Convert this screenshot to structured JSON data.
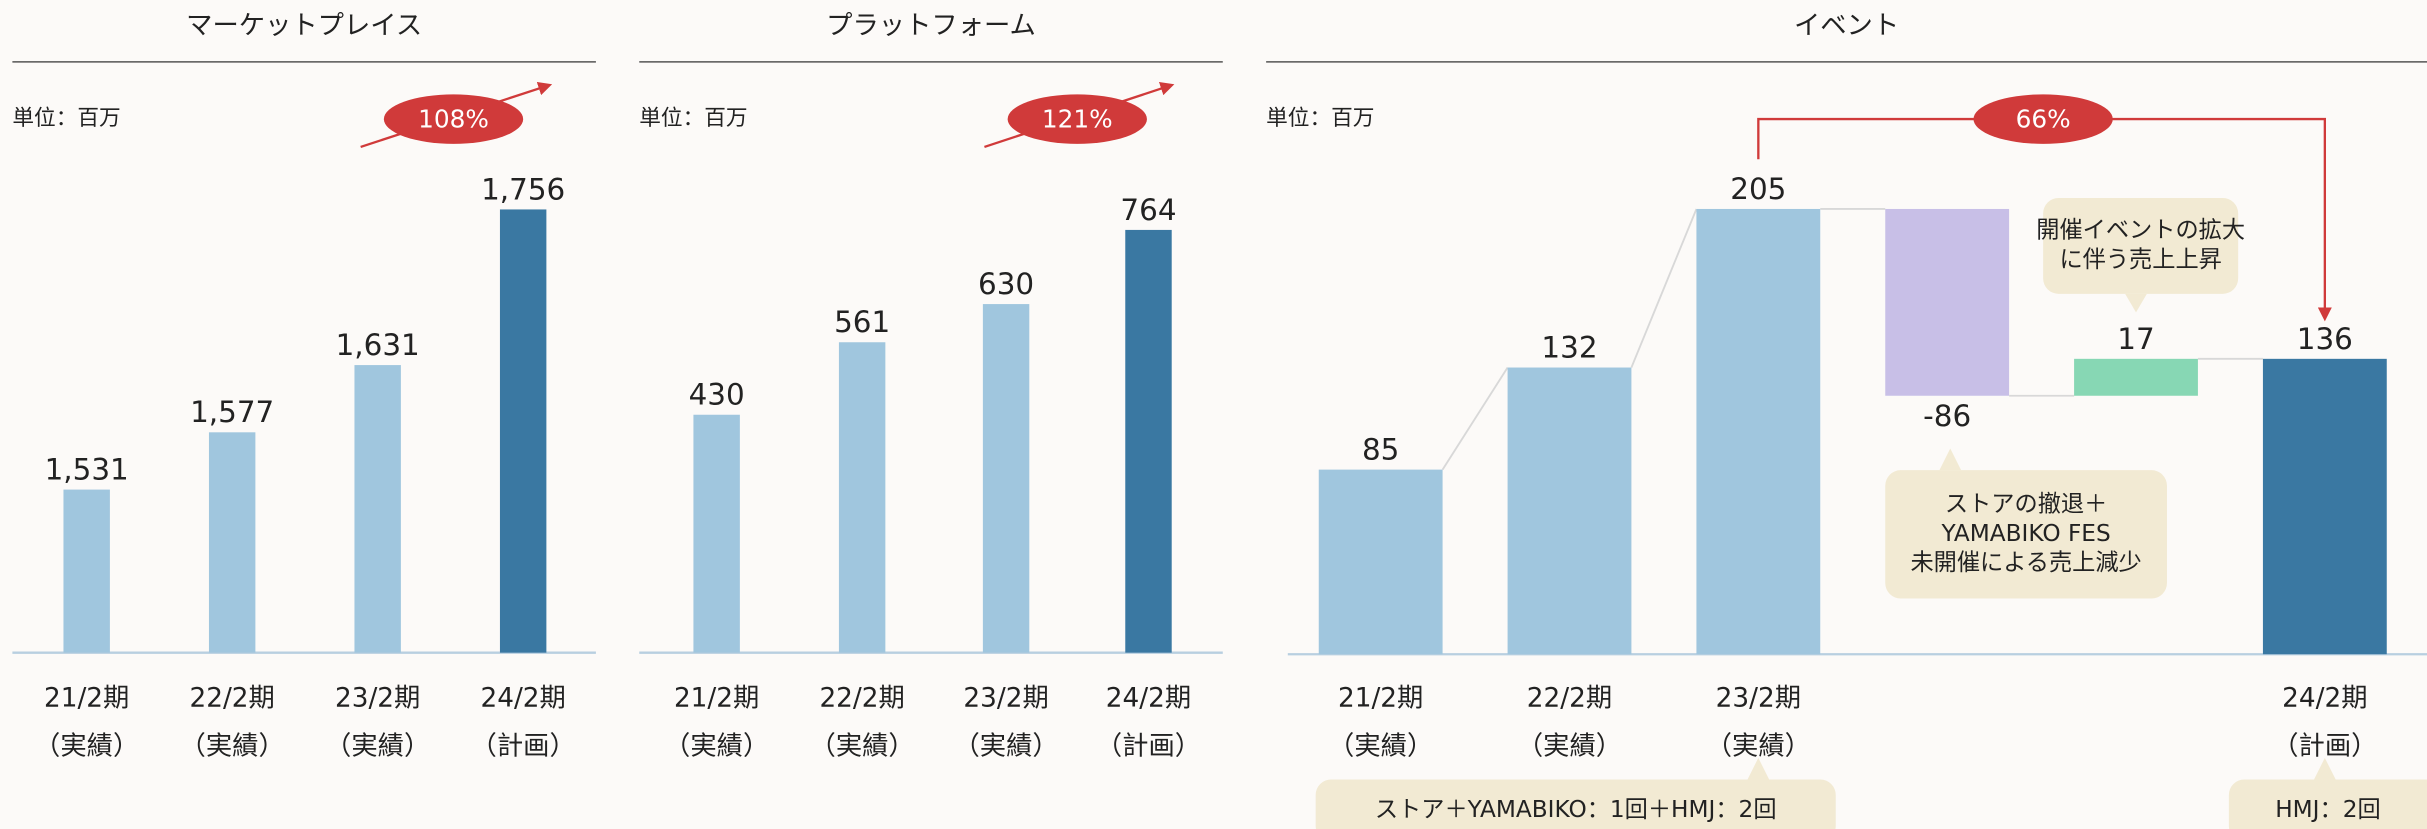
{
  "chart_data": [
    {
      "type": "bar",
      "title": "マーケットプレイス",
      "unit": "単位：百万",
      "growth": "108%",
      "categories": [
        "21/2期",
        "22/2期",
        "23/2期",
        "24/2期"
      ],
      "category_notes": [
        "（実績）",
        "（実績）",
        "（実績）",
        "（計画）"
      ],
      "values": [
        1531,
        1577,
        1631,
        1756
      ],
      "value_labels": [
        "1,531",
        "1,577",
        "1,631",
        "1,756"
      ],
      "colors": [
        "#a0c6de",
        "#a0c6de",
        "#a0c6de",
        "#3a78a2"
      ],
      "ylim": [
        1400,
        1800
      ]
    },
    {
      "type": "bar",
      "title": "プラットフォーム",
      "unit": "単位：百万",
      "growth": "121%",
      "categories": [
        "21/2期",
        "22/2期",
        "23/2期",
        "24/2期"
      ],
      "category_notes": [
        "（実績）",
        "（実績）",
        "（実績）",
        "（計画）"
      ],
      "values": [
        430,
        561,
        630,
        764
      ],
      "colors": [
        "#a0c6de",
        "#a0c6de",
        "#a0c6de",
        "#3a78a2"
      ],
      "ylim": [
        0,
        900
      ]
    },
    {
      "type": "waterfall",
      "title": "イベント",
      "unit": "単位：百万",
      "growth": "66%",
      "categories": [
        "21/2期",
        "22/2期",
        "23/2期",
        null,
        null,
        "24/2期"
      ],
      "category_notes": [
        "（実績）",
        "（実績）",
        "（実績）",
        null,
        null,
        "（計画）"
      ],
      "values": [
        85,
        132,
        205,
        -86,
        17,
        136
      ],
      "measure": [
        "absolute",
        "absolute",
        "absolute",
        "relative",
        "relative",
        "absolute"
      ],
      "colors": [
        "#a0c6de",
        "#a0c6de",
        "#a0c6de",
        "#c8bfe7",
        "#87d7b4",
        "#3a78a2"
      ],
      "ylim": [
        0,
        230
      ],
      "annotations": [
        {
          "lines": [
            "開催イベントの拡大",
            "に伴う売上上昇"
          ]
        },
        {
          "lines": [
            "ストアの撤退＋",
            "YAMABIKO FES",
            "未開催による売上減少"
          ]
        },
        {
          "lines": [
            "ストア＋YAMABIKO：1回＋HMJ：2回"
          ]
        },
        {
          "lines": [
            "HMJ：2回"
          ]
        }
      ]
    }
  ]
}
